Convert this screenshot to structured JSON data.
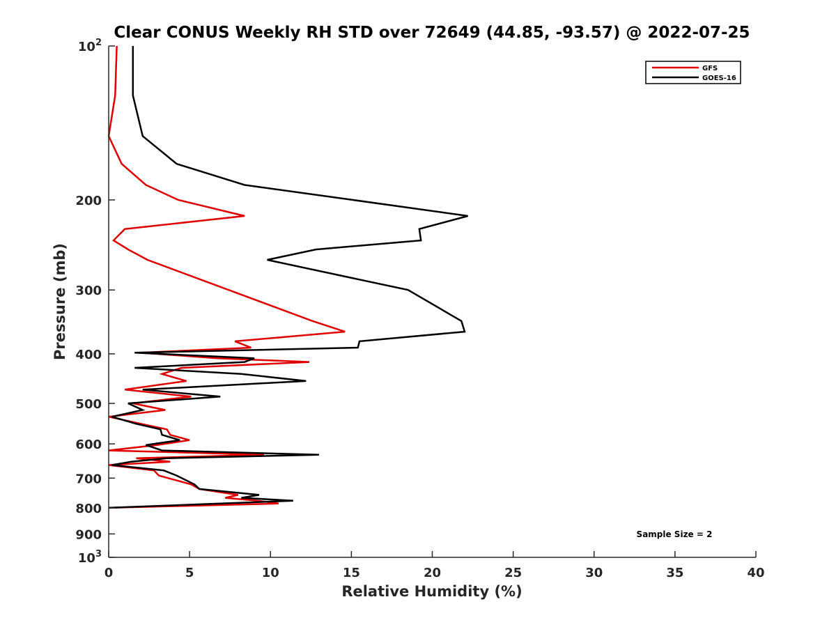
{
  "chart_data": {
    "type": "line",
    "title": "Clear CONUS Weekly RH STD over 72649 (44.85, -93.57) @ 2022-07-25",
    "xlabel": "Relative Humidity (%)",
    "ylabel": "Pressure (mb)",
    "xlim": [
      0,
      40
    ],
    "ylim": [
      100,
      1000
    ],
    "y_scale": "log",
    "y_reversed": true,
    "x_ticks": [
      "0",
      "5",
      "10",
      "15",
      "20",
      "25",
      "30",
      "35",
      "40"
    ],
    "y_ticks": [
      {
        "value": 100,
        "base": "10",
        "exp": "2"
      },
      {
        "value": 200,
        "label": "200"
      },
      {
        "value": 300,
        "label": "300"
      },
      {
        "value": 400,
        "label": "400"
      },
      {
        "value": 500,
        "label": "500"
      },
      {
        "value": 600,
        "label": "600"
      },
      {
        "value": 700,
        "label": "700"
      },
      {
        "value": 800,
        "label": "800"
      },
      {
        "value": 900,
        "label": "900"
      },
      {
        "value": 1000,
        "base": "10",
        "exp": "3"
      }
    ],
    "legend_position": "top-right",
    "grid": false,
    "annotation": "Sample Size = 2",
    "series": [
      {
        "name": "GFS",
        "color": "#e00000",
        "points": [
          [
            0.5,
            100
          ],
          [
            0.4,
            125
          ],
          [
            0.0,
            150
          ],
          [
            0.8,
            170
          ],
          [
            2.3,
            187
          ],
          [
            4.3,
            200
          ],
          [
            8.4,
            215
          ],
          [
            1.0,
            228
          ],
          [
            0.3,
            240
          ],
          [
            1.2,
            250
          ],
          [
            2.4,
            262
          ],
          [
            12.6,
            345
          ],
          [
            14.6,
            362
          ],
          [
            7.8,
            378
          ],
          [
            8.8,
            389
          ],
          [
            2.0,
            398
          ],
          [
            6.7,
            408
          ],
          [
            12.4,
            415
          ],
          [
            4.5,
            426
          ],
          [
            3.3,
            438
          ],
          [
            4.8,
            452
          ],
          [
            1.0,
            470
          ],
          [
            5.1,
            485
          ],
          [
            1.5,
            500
          ],
          [
            3.5,
            515
          ],
          [
            0.0,
            531
          ],
          [
            2.0,
            548
          ],
          [
            3.6,
            562
          ],
          [
            3.8,
            576
          ],
          [
            5.0,
            590
          ],
          [
            3.0,
            603
          ],
          [
            0.0,
            618
          ],
          [
            9.6,
            630
          ],
          [
            1.7,
            640
          ],
          [
            3.8,
            650
          ],
          [
            0.0,
            660
          ],
          [
            2.8,
            676
          ],
          [
            3.1,
            692
          ],
          [
            5.1,
            720
          ],
          [
            5.6,
            735
          ],
          [
            8.0,
            755
          ],
          [
            7.2,
            765
          ],
          [
            9.2,
            775
          ],
          [
            10.5,
            785
          ],
          [
            0.0,
            800
          ]
        ]
      },
      {
        "name": "GOES-16",
        "color": "#000000",
        "points": [
          [
            1.5,
            100
          ],
          [
            1.5,
            125
          ],
          [
            2.1,
            150
          ],
          [
            4.2,
            170
          ],
          [
            8.4,
            187
          ],
          [
            15.1,
            200
          ],
          [
            22.2,
            215
          ],
          [
            19.2,
            228
          ],
          [
            19.3,
            240
          ],
          [
            12.8,
            250
          ],
          [
            9.8,
            262
          ],
          [
            18.5,
            300
          ],
          [
            21.8,
            345
          ],
          [
            22.0,
            362
          ],
          [
            15.5,
            378
          ],
          [
            15.4,
            389
          ],
          [
            1.6,
            398
          ],
          [
            9.0,
            408
          ],
          [
            8.4,
            415
          ],
          [
            1.6,
            426
          ],
          [
            8.2,
            438
          ],
          [
            12.2,
            452
          ],
          [
            2.1,
            470
          ],
          [
            6.9,
            485
          ],
          [
            1.2,
            500
          ],
          [
            2.1,
            515
          ],
          [
            0.2,
            531
          ],
          [
            1.7,
            548
          ],
          [
            3.2,
            562
          ],
          [
            3.3,
            576
          ],
          [
            4.4,
            590
          ],
          [
            2.3,
            603
          ],
          [
            3.3,
            618
          ],
          [
            13.0,
            630
          ],
          [
            3.6,
            640
          ],
          [
            1.4,
            650
          ],
          [
            0.2,
            660
          ],
          [
            3.4,
            676
          ],
          [
            4.2,
            692
          ],
          [
            5.3,
            720
          ],
          [
            5.6,
            735
          ],
          [
            9.3,
            755
          ],
          [
            8.2,
            765
          ],
          [
            11.4,
            775
          ],
          [
            0.0,
            800
          ]
        ]
      }
    ]
  }
}
